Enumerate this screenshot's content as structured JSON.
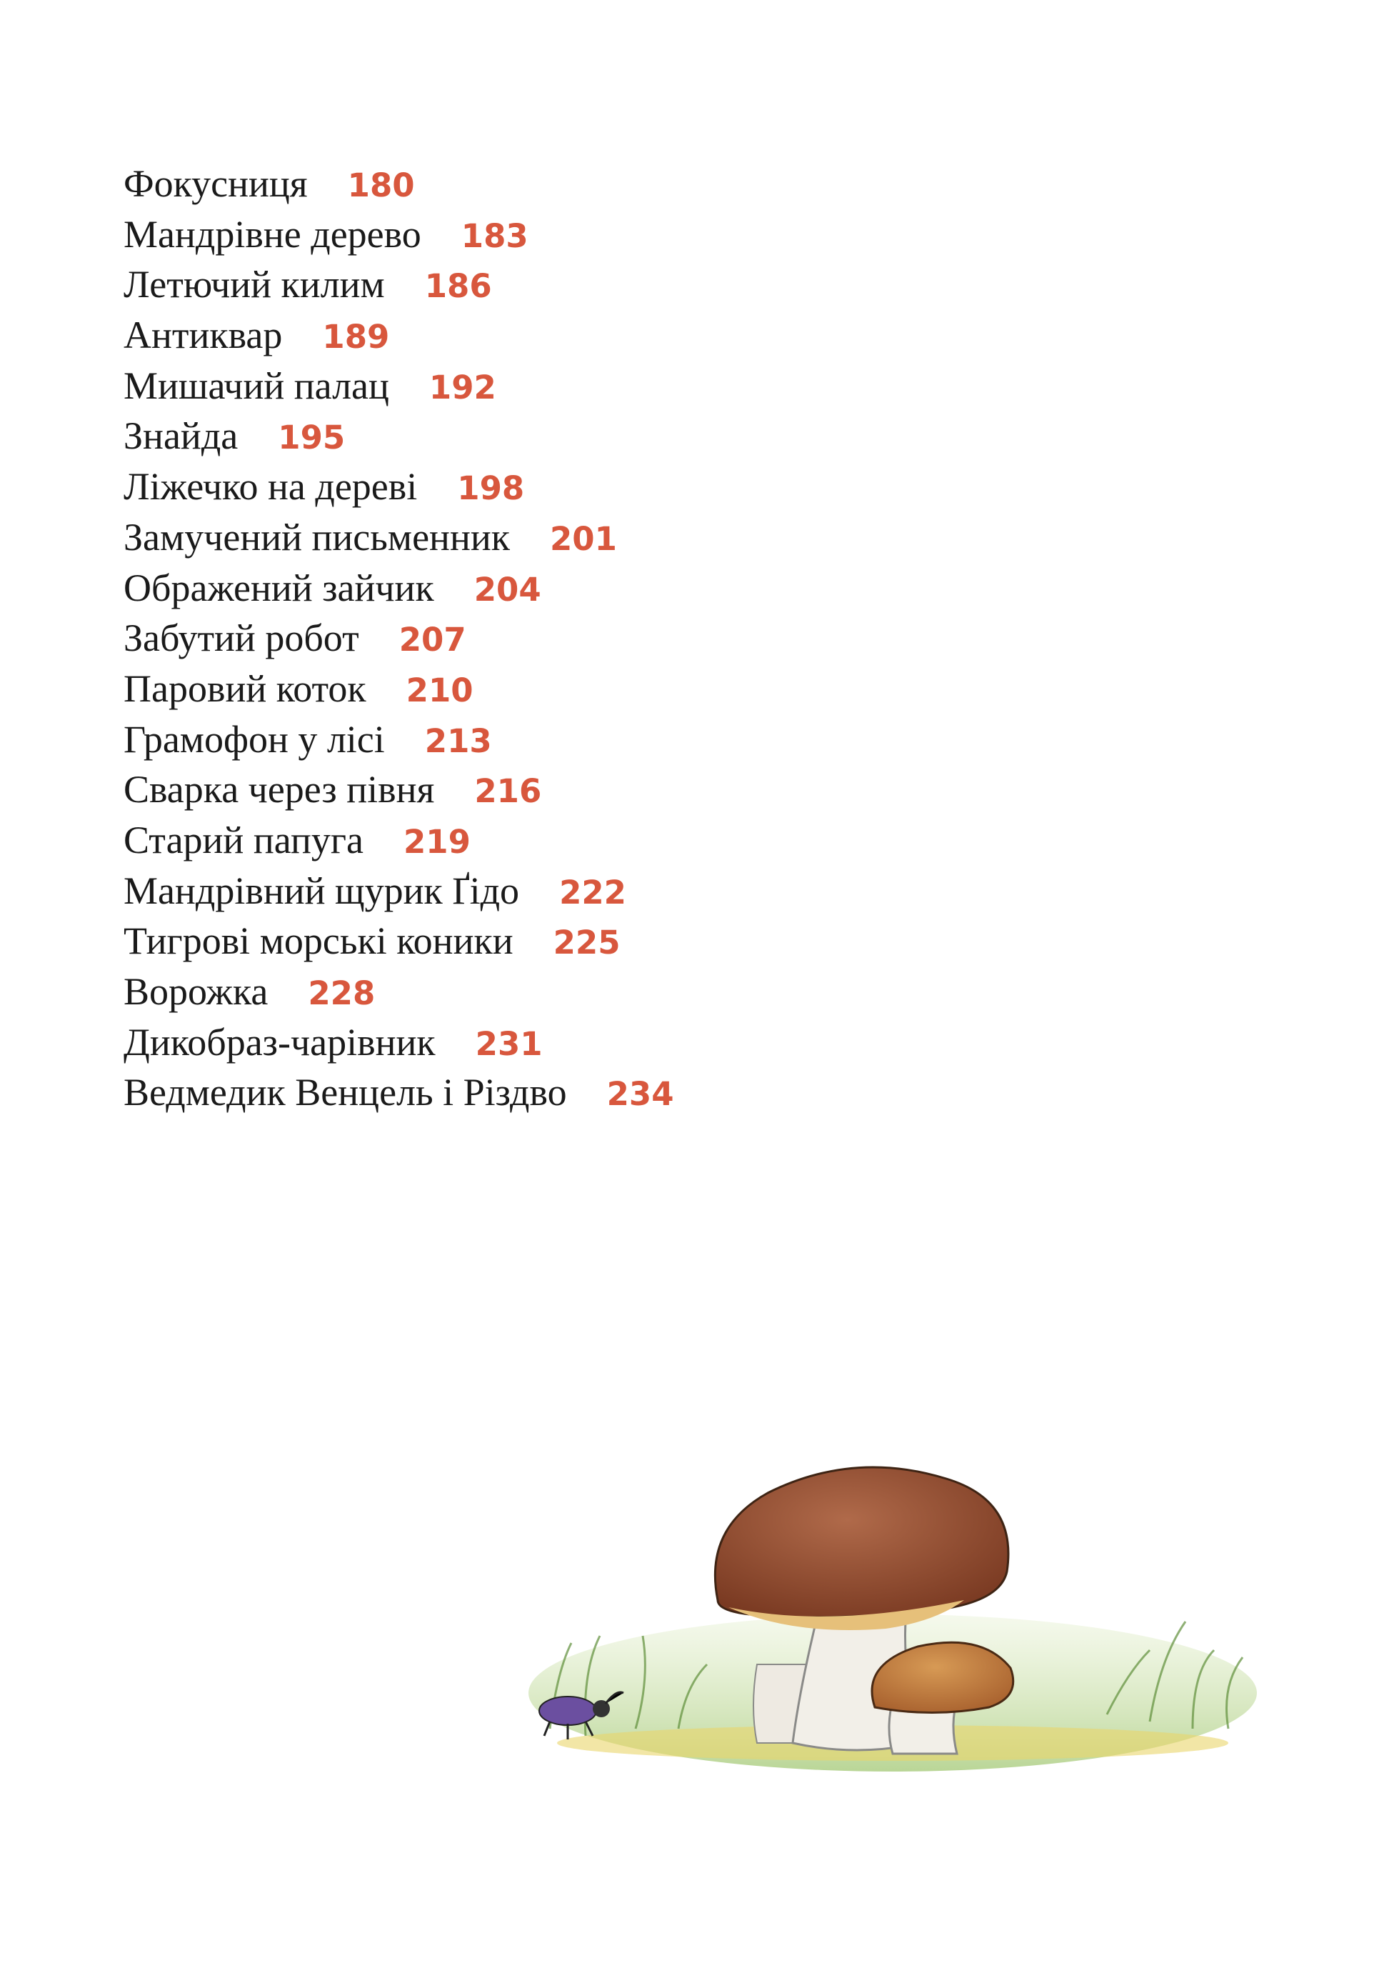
{
  "entries": [
    {
      "title": "Фокусниця",
      "page": 180
    },
    {
      "title": "Мандрівне дерево",
      "page": 183
    },
    {
      "title": "Летючий килим",
      "page": 186
    },
    {
      "title": "Антиквар",
      "page": 189
    },
    {
      "title": "Мишачий палац",
      "page": 192
    },
    {
      "title": "Знайда",
      "page": 195
    },
    {
      "title": "Ліжечко на дереві",
      "page": 198
    },
    {
      "title": "Замучений письменник",
      "page": 201
    },
    {
      "title": "Ображений зайчик",
      "page": 204
    },
    {
      "title": "Забутий робот",
      "page": 207
    },
    {
      "title": "Паровий коток",
      "page": 210
    },
    {
      "title": "Грамофон у лісі",
      "page": 213
    },
    {
      "title": "Сварка через півня",
      "page": 216
    },
    {
      "title": "Старий папуга",
      "page": 219
    },
    {
      "title": "Мандрівний щурик Ґідо",
      "page": 222
    },
    {
      "title": "Тигрові морські коники",
      "page": 225
    },
    {
      "title": "Ворожка",
      "page": 228
    },
    {
      "title": "Дикобраз-чарівник",
      "page": 231
    },
    {
      "title": "Ведмедик Венцель і Різдво",
      "page": 234
    }
  ]
}
